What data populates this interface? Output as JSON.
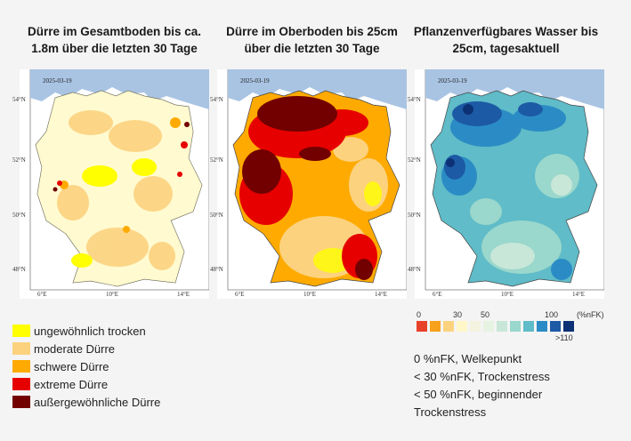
{
  "panels": [
    {
      "title": "Dürre im Gesamtboden bis ca. 1.8m über die letzten 30 Tage",
      "date": "2025-03-19"
    },
    {
      "title": "Dürre im Oberboden bis 25cm über die letzten 30 Tage",
      "date": "2025-03-19"
    },
    {
      "title": "Pflanzenverfügbares Wasser bis 25cm, tagesaktuell",
      "date": "2025-03-19"
    }
  ],
  "axis": {
    "lat_ticks": [
      "54°N",
      "52°N",
      "50°N",
      "48°N"
    ],
    "lon_ticks": [
      "6°E",
      "10°E",
      "14°E"
    ]
  },
  "drought_legend": [
    {
      "label": "ungewöhnlich trocken",
      "color": "#ffff00"
    },
    {
      "label": "moderate Dürre",
      "color": "#fcd27e"
    },
    {
      "label": "schwere Dürre",
      "color": "#ffaa00"
    },
    {
      "label": "extreme Dürre",
      "color": "#e60000"
    },
    {
      "label": "außergewöhnliche Dürre",
      "color": "#730000"
    }
  ],
  "water_legend": {
    "labels": [
      "0",
      "30",
      "50",
      "100",
      "(%nFK)",
      ">110"
    ],
    "colors": [
      "#e8412a",
      "#f7a11d",
      "#fcd27e",
      "#fff7c7",
      "#f3f3e0",
      "#e7f3e2",
      "#c8e7d8",
      "#9ad7cc",
      "#5fbcc8",
      "#2b8cc5",
      "#1d5aa5",
      "#0c3275"
    ]
  },
  "notes": [
    "0 %nFK, Welkepunkt",
    "< 30 %nFK, Trockenstress",
    "< 50 %nFK, beginnender",
    "Trockenstress"
  ]
}
